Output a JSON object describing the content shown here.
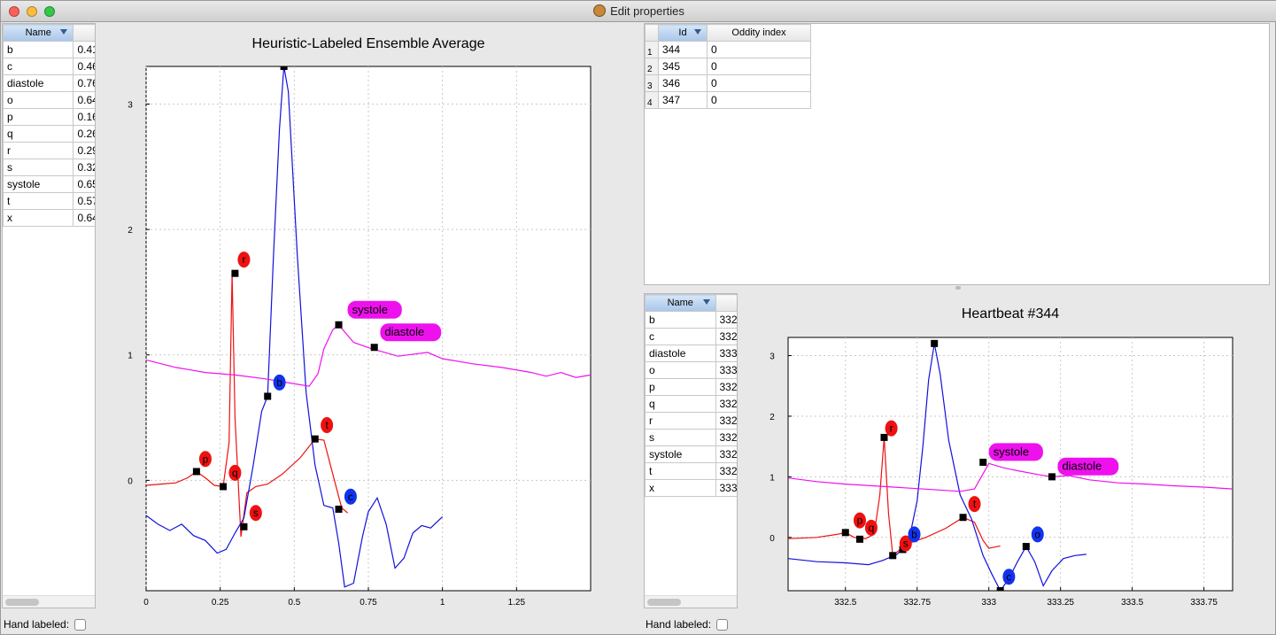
{
  "window": {
    "title": "Edit properties"
  },
  "left_table": {
    "header_name": "Name",
    "rows": [
      {
        "name": "b",
        "value": "0.41"
      },
      {
        "name": "c",
        "value": "0.46"
      },
      {
        "name": "diastole",
        "value": "0.76"
      },
      {
        "name": "o",
        "value": "0.64"
      },
      {
        "name": "p",
        "value": "0.16"
      },
      {
        "name": "q",
        "value": "0.26"
      },
      {
        "name": "r",
        "value": "0.29"
      },
      {
        "name": "s",
        "value": "0.32"
      },
      {
        "name": "systole",
        "value": "0.65"
      },
      {
        "name": "t",
        "value": "0.57"
      },
      {
        "name": "x",
        "value": "0.64"
      }
    ]
  },
  "left_footer": {
    "label": "Hand labeled:"
  },
  "beats_table": {
    "header_id": "Id",
    "header_oddity": "Oddity index",
    "rows": [
      {
        "num": "1",
        "id": "344",
        "oddity": "0"
      },
      {
        "num": "2",
        "id": "345",
        "oddity": "0"
      },
      {
        "num": "3",
        "id": "346",
        "oddity": "0"
      },
      {
        "num": "4",
        "id": "347",
        "oddity": "0"
      }
    ]
  },
  "right_table": {
    "header_name": "Name",
    "rows": [
      {
        "name": "b",
        "value": "332"
      },
      {
        "name": "c",
        "value": "332"
      },
      {
        "name": "diastole",
        "value": "333"
      },
      {
        "name": "o",
        "value": "333"
      },
      {
        "name": "p",
        "value": "332"
      },
      {
        "name": "q",
        "value": "332"
      },
      {
        "name": "r",
        "value": "332"
      },
      {
        "name": "s",
        "value": "332"
      },
      {
        "name": "systole",
        "value": "332"
      },
      {
        "name": "t",
        "value": "332"
      },
      {
        "name": "x",
        "value": "333"
      }
    ]
  },
  "right_footer": {
    "label": "Hand labeled:"
  },
  "colors": {
    "ecg": "#ee1111",
    "pressure": "#1111dd",
    "flow": "#ee11ee",
    "label_fill_red": "#ee1111",
    "label_fill_blue": "#1133ee",
    "label_fill_magenta": "#ee11ee"
  },
  "chart_data": [
    {
      "type": "line",
      "title": "Heuristic-Labeled Ensemble Average",
      "xlim": [
        0,
        1.5
      ],
      "ylim": [
        -0.88,
        3.3
      ],
      "x_ticks": [
        0,
        0.25,
        0.5,
        0.75,
        1,
        1.25
      ],
      "x_tick_labels": [
        "0",
        "0.25",
        "0.5",
        "0.75",
        "1",
        "1.25"
      ],
      "y_ticks": [
        0,
        1,
        2,
        3
      ],
      "y_tick_labels": [
        "0",
        "1",
        "2",
        "3"
      ],
      "grid": true,
      "series": [
        {
          "color": "ecg",
          "points": [
            [
              0,
              -0.04
            ],
            [
              0.05,
              -0.03
            ],
            [
              0.1,
              -0.02
            ],
            [
              0.14,
              0.02
            ],
            [
              0.17,
              0.07
            ],
            [
              0.2,
              0.02
            ],
            [
              0.23,
              -0.04
            ],
            [
              0.26,
              -0.05
            ],
            [
              0.28,
              0.3
            ],
            [
              0.29,
              1.65
            ],
            [
              0.3,
              0.5
            ],
            [
              0.32,
              -0.45
            ],
            [
              0.34,
              -0.1
            ],
            [
              0.37,
              -0.05
            ],
            [
              0.41,
              -0.03
            ],
            [
              0.46,
              0.05
            ],
            [
              0.52,
              0.18
            ],
            [
              0.57,
              0.33
            ],
            [
              0.6,
              0.32
            ],
            [
              0.63,
              0.05
            ],
            [
              0.66,
              -0.22
            ],
            [
              0.68,
              -0.26
            ]
          ]
        },
        {
          "color": "pressure",
          "points": [
            [
              0,
              -0.28
            ],
            [
              0.04,
              -0.35
            ],
            [
              0.08,
              -0.4
            ],
            [
              0.12,
              -0.35
            ],
            [
              0.16,
              -0.44
            ],
            [
              0.2,
              -0.48
            ],
            [
              0.24,
              -0.58
            ],
            [
              0.27,
              -0.55
            ],
            [
              0.3,
              -0.42
            ],
            [
              0.33,
              -0.3
            ],
            [
              0.36,
              0.1
            ],
            [
              0.39,
              0.55
            ],
            [
              0.41,
              0.67
            ],
            [
              0.43,
              1.8
            ],
            [
              0.45,
              2.8
            ],
            [
              0.465,
              3.3
            ],
            [
              0.48,
              3.1
            ],
            [
              0.51,
              1.8
            ],
            [
              0.54,
              0.7
            ],
            [
              0.57,
              0.12
            ],
            [
              0.6,
              -0.2
            ],
            [
              0.63,
              -0.22
            ],
            [
              0.65,
              -0.5
            ],
            [
              0.67,
              -0.85
            ],
            [
              0.7,
              -0.82
            ],
            [
              0.73,
              -0.45
            ],
            [
              0.75,
              -0.25
            ],
            [
              0.78,
              -0.14
            ],
            [
              0.81,
              -0.35
            ],
            [
              0.84,
              -0.7
            ],
            [
              0.87,
              -0.62
            ],
            [
              0.9,
              -0.42
            ],
            [
              0.93,
              -0.36
            ],
            [
              0.96,
              -0.38
            ],
            [
              1.0,
              -0.29
            ]
          ]
        },
        {
          "color": "flow",
          "points": [
            [
              0,
              0.96
            ],
            [
              0.05,
              0.93
            ],
            [
              0.1,
              0.9
            ],
            [
              0.15,
              0.88
            ],
            [
              0.2,
              0.86
            ],
            [
              0.3,
              0.84
            ],
            [
              0.4,
              0.81
            ],
            [
              0.45,
              0.79
            ],
            [
              0.55,
              0.75
            ],
            [
              0.58,
              0.85
            ],
            [
              0.6,
              1.05
            ],
            [
              0.63,
              1.2
            ],
            [
              0.65,
              1.24
            ],
            [
              0.7,
              1.1
            ],
            [
              0.76,
              1.05
            ],
            [
              0.85,
              0.99
            ],
            [
              0.95,
              1.02
            ],
            [
              1.0,
              0.97
            ],
            [
              1.1,
              0.93
            ],
            [
              1.2,
              0.9
            ],
            [
              1.3,
              0.86
            ],
            [
              1.35,
              0.83
            ],
            [
              1.4,
              0.86
            ],
            [
              1.45,
              0.82
            ],
            [
              1.5,
              0.84
            ]
          ]
        }
      ],
      "markers": [
        [
          0.17,
          0.07
        ],
        [
          0.26,
          -0.05
        ],
        [
          0.3,
          1.65
        ],
        [
          0.33,
          -0.37
        ],
        [
          0.41,
          0.67
        ],
        [
          0.465,
          3.3
        ],
        [
          0.57,
          0.33
        ],
        [
          0.65,
          -0.23
        ],
        [
          0.65,
          1.24
        ],
        [
          0.77,
          1.06
        ]
      ],
      "annotations": [
        {
          "text": "p",
          "x": 0.2,
          "y": 0.17,
          "color": "label_fill_red"
        },
        {
          "text": "q",
          "x": 0.3,
          "y": 0.06,
          "color": "label_fill_red"
        },
        {
          "text": "r",
          "x": 0.33,
          "y": 1.76,
          "color": "label_fill_red"
        },
        {
          "text": "s",
          "x": 0.37,
          "y": -0.26,
          "color": "label_fill_red"
        },
        {
          "text": "t",
          "x": 0.61,
          "y": 0.44,
          "color": "label_fill_red"
        },
        {
          "text": "b",
          "x": 0.45,
          "y": 0.78,
          "color": "label_fill_blue"
        },
        {
          "text": "c",
          "x": 0.69,
          "y": -0.13,
          "color": "label_fill_blue"
        },
        {
          "text": "systole",
          "x": 0.68,
          "y": 1.36,
          "color": "label_fill_magenta"
        },
        {
          "text": "diastole",
          "x": 0.79,
          "y": 1.18,
          "color": "label_fill_magenta"
        }
      ]
    },
    {
      "type": "line",
      "title": "Heartbeat #344",
      "xlim": [
        332.3,
        333.85
      ],
      "ylim": [
        -0.88,
        3.3
      ],
      "x_ticks": [
        332.5,
        332.75,
        333,
        333.25,
        333.5,
        333.75
      ],
      "x_tick_labels": [
        "332.5",
        "332.75",
        "333",
        "333.25",
        "333.5",
        "333.75"
      ],
      "y_ticks": [
        0,
        1,
        2,
        3
      ],
      "y_tick_labels": [
        "0",
        "1",
        "2",
        "3"
      ],
      "grid": true,
      "series": [
        {
          "color": "ecg",
          "points": [
            [
              332.3,
              -0.02
            ],
            [
              332.4,
              0.0
            ],
            [
              332.47,
              0.05
            ],
            [
              332.5,
              0.08
            ],
            [
              332.53,
              0.0
            ],
            [
              332.57,
              -0.02
            ],
            [
              332.6,
              0.05
            ],
            [
              332.62,
              0.7
            ],
            [
              332.635,
              1.65
            ],
            [
              332.65,
              0.4
            ],
            [
              332.665,
              -0.3
            ],
            [
              332.69,
              -0.2
            ],
            [
              332.72,
              -0.1
            ],
            [
              332.78,
              0.0
            ],
            [
              332.85,
              0.15
            ],
            [
              332.91,
              0.33
            ],
            [
              332.95,
              0.25
            ],
            [
              332.98,
              -0.05
            ],
            [
              333.0,
              -0.18
            ],
            [
              333.04,
              -0.14
            ]
          ]
        },
        {
          "color": "pressure",
          "points": [
            [
              332.3,
              -0.35
            ],
            [
              332.4,
              -0.4
            ],
            [
              332.5,
              -0.42
            ],
            [
              332.58,
              -0.45
            ],
            [
              332.63,
              -0.38
            ],
            [
              332.68,
              -0.28
            ],
            [
              332.72,
              -0.08
            ],
            [
              332.75,
              0.6
            ],
            [
              332.77,
              1.5
            ],
            [
              332.79,
              2.6
            ],
            [
              332.81,
              3.2
            ],
            [
              332.83,
              2.7
            ],
            [
              332.86,
              1.6
            ],
            [
              332.9,
              0.7
            ],
            [
              332.94,
              0.3
            ],
            [
              332.98,
              -0.3
            ],
            [
              333.01,
              -0.6
            ],
            [
              333.04,
              -0.88
            ],
            [
              333.07,
              -0.68
            ],
            [
              333.1,
              -0.4
            ],
            [
              333.13,
              -0.15
            ],
            [
              333.16,
              -0.4
            ],
            [
              333.19,
              -0.8
            ],
            [
              333.22,
              -0.55
            ],
            [
              333.26,
              -0.35
            ],
            [
              333.3,
              -0.3
            ],
            [
              333.34,
              -0.28
            ]
          ]
        },
        {
          "color": "flow",
          "points": [
            [
              332.3,
              0.98
            ],
            [
              332.4,
              0.92
            ],
            [
              332.5,
              0.88
            ],
            [
              332.6,
              0.85
            ],
            [
              332.7,
              0.82
            ],
            [
              332.8,
              0.79
            ],
            [
              332.9,
              0.76
            ],
            [
              332.95,
              0.8
            ],
            [
              332.98,
              1.05
            ],
            [
              333.0,
              1.22
            ],
            [
              333.05,
              1.15
            ],
            [
              333.1,
              1.1
            ],
            [
              333.18,
              1.03
            ],
            [
              333.22,
              1.0
            ],
            [
              333.28,
              1.02
            ],
            [
              333.35,
              0.95
            ],
            [
              333.45,
              0.9
            ],
            [
              333.55,
              0.88
            ],
            [
              333.65,
              0.85
            ],
            [
              333.75,
              0.83
            ],
            [
              333.85,
              0.8
            ]
          ]
        }
      ],
      "markers": [
        [
          332.5,
          0.08
        ],
        [
          332.55,
          -0.03
        ],
        [
          332.635,
          1.65
        ],
        [
          332.665,
          -0.3
        ],
        [
          332.7,
          -0.2
        ],
        [
          332.81,
          3.2
        ],
        [
          332.91,
          0.33
        ],
        [
          332.98,
          1.24
        ],
        [
          333.04,
          -0.88
        ],
        [
          333.13,
          -0.15
        ],
        [
          333.22,
          1.0
        ]
      ],
      "annotations": [
        {
          "text": "p",
          "x": 332.55,
          "y": 0.28,
          "color": "label_fill_red"
        },
        {
          "text": "q",
          "x": 332.59,
          "y": 0.16,
          "color": "label_fill_red"
        },
        {
          "text": "r",
          "x": 332.66,
          "y": 1.8,
          "color": "label_fill_red"
        },
        {
          "text": "s",
          "x": 332.71,
          "y": -0.1,
          "color": "label_fill_red"
        },
        {
          "text": "t",
          "x": 332.95,
          "y": 0.55,
          "color": "label_fill_red"
        },
        {
          "text": "b",
          "x": 332.74,
          "y": 0.05,
          "color": "label_fill_blue"
        },
        {
          "text": "c",
          "x": 333.07,
          "y": -0.65,
          "color": "label_fill_blue"
        },
        {
          "text": "o",
          "x": 333.17,
          "y": 0.05,
          "color": "label_fill_blue"
        },
        {
          "text": "systole",
          "x": 333.0,
          "y": 1.41,
          "color": "label_fill_magenta"
        },
        {
          "text": "diastole",
          "x": 333.24,
          "y": 1.17,
          "color": "label_fill_magenta"
        }
      ]
    }
  ]
}
